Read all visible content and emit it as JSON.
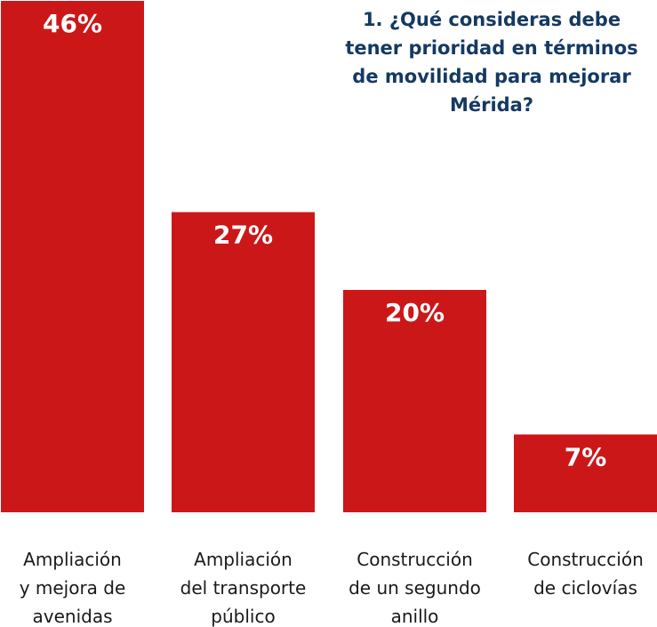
{
  "chart_data": {
    "type": "bar",
    "title_lines": [
      "1. ¿Qué consideras debe",
      "tener prioridad en términos",
      "de movilidad para mejorar",
      "Mérida?"
    ],
    "categories": [
      [
        "Ampliación",
        "y mejora de",
        "avenidas"
      ],
      [
        "Ampliación",
        "del transporte",
        "público"
      ],
      [
        "Construcción",
        "de un segundo",
        "anillo"
      ],
      [
        "Construcción",
        "de ciclovías"
      ]
    ],
    "values": [
      46,
      27,
      20,
      7
    ],
    "value_labels": [
      "46%",
      "27%",
      "20%",
      "7%"
    ],
    "ylim": [
      0,
      46
    ],
    "grid": false,
    "legend": "none",
    "colors": {
      "bar": "#cc1719",
      "title": "#143963",
      "value_text": "#ffffff",
      "category_text": "#1a1a1a"
    }
  }
}
